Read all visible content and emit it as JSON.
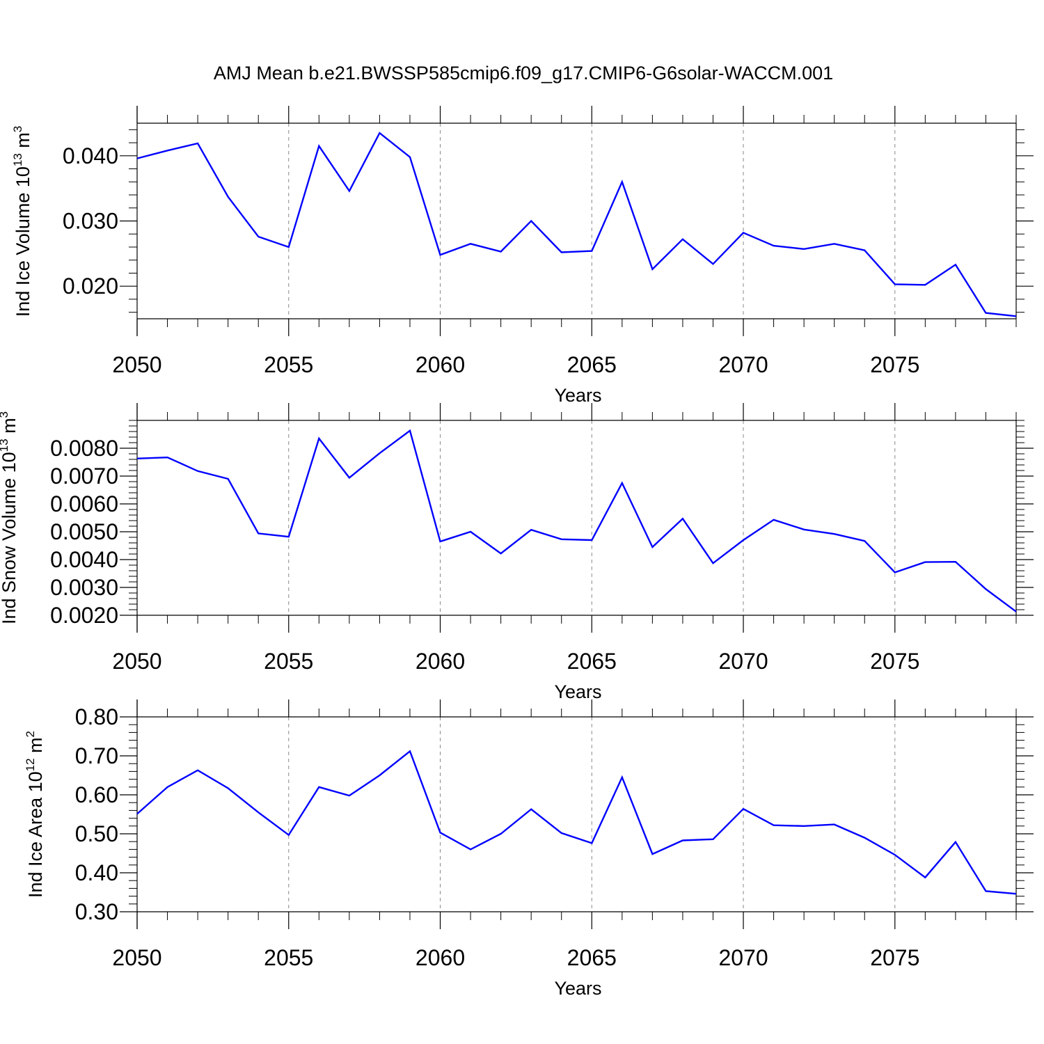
{
  "title": "AMJ Mean b.e21.BWSSP585cmip6.f09_g17.CMIP6-G6solar-WACCM.001",
  "colors": {
    "line": "#0000ff",
    "axis": "#000000",
    "grid": "#888888",
    "background": "#ffffff"
  },
  "chart_data": [
    {
      "type": "line",
      "ylabel": "Ind Ice Volume 10",
      "ylabel_exp": "13",
      "ylabel_unit": " m",
      "ylabel_unit_exp": "3",
      "xlabel": "Years",
      "xlim": [
        2050,
        2079
      ],
      "ylim": [
        0.015,
        0.045
      ],
      "xticks": [
        2050,
        2055,
        2060,
        2065,
        2070,
        2075
      ],
      "xtick_labels": [
        "2050",
        "2055",
        "2060",
        "2065",
        "2070",
        "2075"
      ],
      "yticks": [
        0.02,
        0.03,
        0.04
      ],
      "ytick_labels": [
        "0.020",
        "0.030",
        "0.040"
      ],
      "grid": "vertical dashed at major x ticks",
      "series": [
        {
          "x": [
            2050,
            2051,
            2052,
            2053,
            2054,
            2055,
            2056,
            2057,
            2058,
            2059,
            2060,
            2061,
            2062,
            2063,
            2064,
            2065,
            2066,
            2067,
            2068,
            2069,
            2070,
            2071,
            2072,
            2073,
            2074,
            2075,
            2076,
            2077,
            2078,
            2079
          ],
          "values": [
            0.0396,
            0.0408,
            0.0419,
            0.0337,
            0.0276,
            0.026,
            0.0415,
            0.0346,
            0.0435,
            0.0398,
            0.0248,
            0.0265,
            0.0253,
            0.03,
            0.0252,
            0.0254,
            0.036,
            0.0226,
            0.0272,
            0.0234,
            0.0282,
            0.0262,
            0.0257,
            0.0265,
            0.0255,
            0.0203,
            0.0202,
            0.0233,
            0.0159,
            0.0154
          ]
        }
      ]
    },
    {
      "type": "line",
      "ylabel": "Ind Snow Volume 10",
      "ylabel_exp": "13",
      "ylabel_unit": " m",
      "ylabel_unit_exp": "3",
      "xlabel": "Years",
      "xlim": [
        2050,
        2079
      ],
      "ylim": [
        0.002,
        0.009
      ],
      "xticks": [
        2050,
        2055,
        2060,
        2065,
        2070,
        2075
      ],
      "xtick_labels": [
        "2050",
        "2055",
        "2060",
        "2065",
        "2070",
        "2075"
      ],
      "yticks": [
        0.002,
        0.003,
        0.004,
        0.005,
        0.006,
        0.007,
        0.008
      ],
      "ytick_labels": [
        "0.0020",
        "0.0030",
        "0.0040",
        "0.0050",
        "0.0060",
        "0.0070",
        "0.0080"
      ],
      "grid": "vertical dashed at major x ticks",
      "series": [
        {
          "x": [
            2050,
            2051,
            2052,
            2053,
            2054,
            2055,
            2056,
            2057,
            2058,
            2059,
            2060,
            2061,
            2062,
            2063,
            2064,
            2065,
            2066,
            2067,
            2068,
            2069,
            2070,
            2071,
            2072,
            2073,
            2074,
            2075,
            2076,
            2077,
            2078,
            2079
          ],
          "values": [
            0.00763,
            0.00767,
            0.00718,
            0.0069,
            0.00494,
            0.00482,
            0.00835,
            0.00694,
            0.00782,
            0.00863,
            0.00465,
            0.005,
            0.00422,
            0.00507,
            0.00473,
            0.0047,
            0.00675,
            0.00445,
            0.00547,
            0.00387,
            0.0047,
            0.00543,
            0.00508,
            0.00492,
            0.00467,
            0.00354,
            0.00391,
            0.00392,
            0.00294,
            0.00213
          ]
        }
      ]
    },
    {
      "type": "line",
      "ylabel": "Ind Ice Area 10",
      "ylabel_exp": "12",
      "ylabel_unit": " m",
      "ylabel_unit_exp": "2",
      "xlabel": "Years",
      "xlim": [
        2050,
        2079
      ],
      "ylim": [
        0.3,
        0.8
      ],
      "xticks": [
        2050,
        2055,
        2060,
        2065,
        2070,
        2075
      ],
      "xtick_labels": [
        "2050",
        "2055",
        "2060",
        "2065",
        "2070",
        "2075"
      ],
      "yticks": [
        0.3,
        0.4,
        0.5,
        0.6,
        0.7,
        0.8
      ],
      "ytick_labels": [
        "0.30",
        "0.40",
        "0.50",
        "0.60",
        "0.70",
        "0.80"
      ],
      "grid": "vertical dashed at major x ticks",
      "series": [
        {
          "x": [
            2050,
            2051,
            2052,
            2053,
            2054,
            2055,
            2056,
            2057,
            2058,
            2059,
            2060,
            2061,
            2062,
            2063,
            2064,
            2065,
            2066,
            2067,
            2068,
            2069,
            2070,
            2071,
            2072,
            2073,
            2074,
            2075,
            2076,
            2077,
            2078,
            2079
          ],
          "values": [
            0.551,
            0.62,
            0.663,
            0.617,
            0.555,
            0.497,
            0.62,
            0.598,
            0.65,
            0.712,
            0.503,
            0.46,
            0.5,
            0.563,
            0.502,
            0.476,
            0.645,
            0.448,
            0.483,
            0.486,
            0.564,
            0.522,
            0.52,
            0.524,
            0.49,
            0.446,
            0.388,
            0.479,
            0.353,
            0.346
          ]
        }
      ]
    }
  ]
}
